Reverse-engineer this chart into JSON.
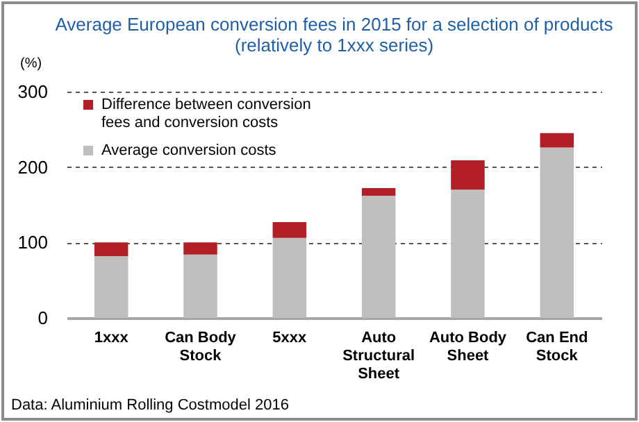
{
  "chart_data": {
    "type": "bar",
    "title": "Average European conversion fees in 2015 for a selection of products",
    "subtitle": "(relatively to 1xxx series)",
    "ylabel": "(%)",
    "categories": [
      "1xxx",
      "Can Body Stock",
      "5xxx",
      "Auto Structural Sheet",
      "Auto Body Sheet",
      "Can End Stock"
    ],
    "series": [
      {
        "name": "Average conversion costs",
        "color": "#bfbfbf",
        "values": [
          82,
          84,
          106,
          162,
          170,
          226
        ]
      },
      {
        "name": "Difference between conversion fees and conversion costs",
        "color": "#b22025",
        "values": [
          18,
          16,
          21,
          10,
          39,
          19
        ]
      }
    ],
    "stacked": true,
    "ylim": [
      0,
      300
    ],
    "yticks": [
      0,
      100,
      200,
      300
    ],
    "grid": "y",
    "legend": "top left",
    "annotations": [
      "Data: Aluminium Rolling Costmodel 2016"
    ]
  }
}
